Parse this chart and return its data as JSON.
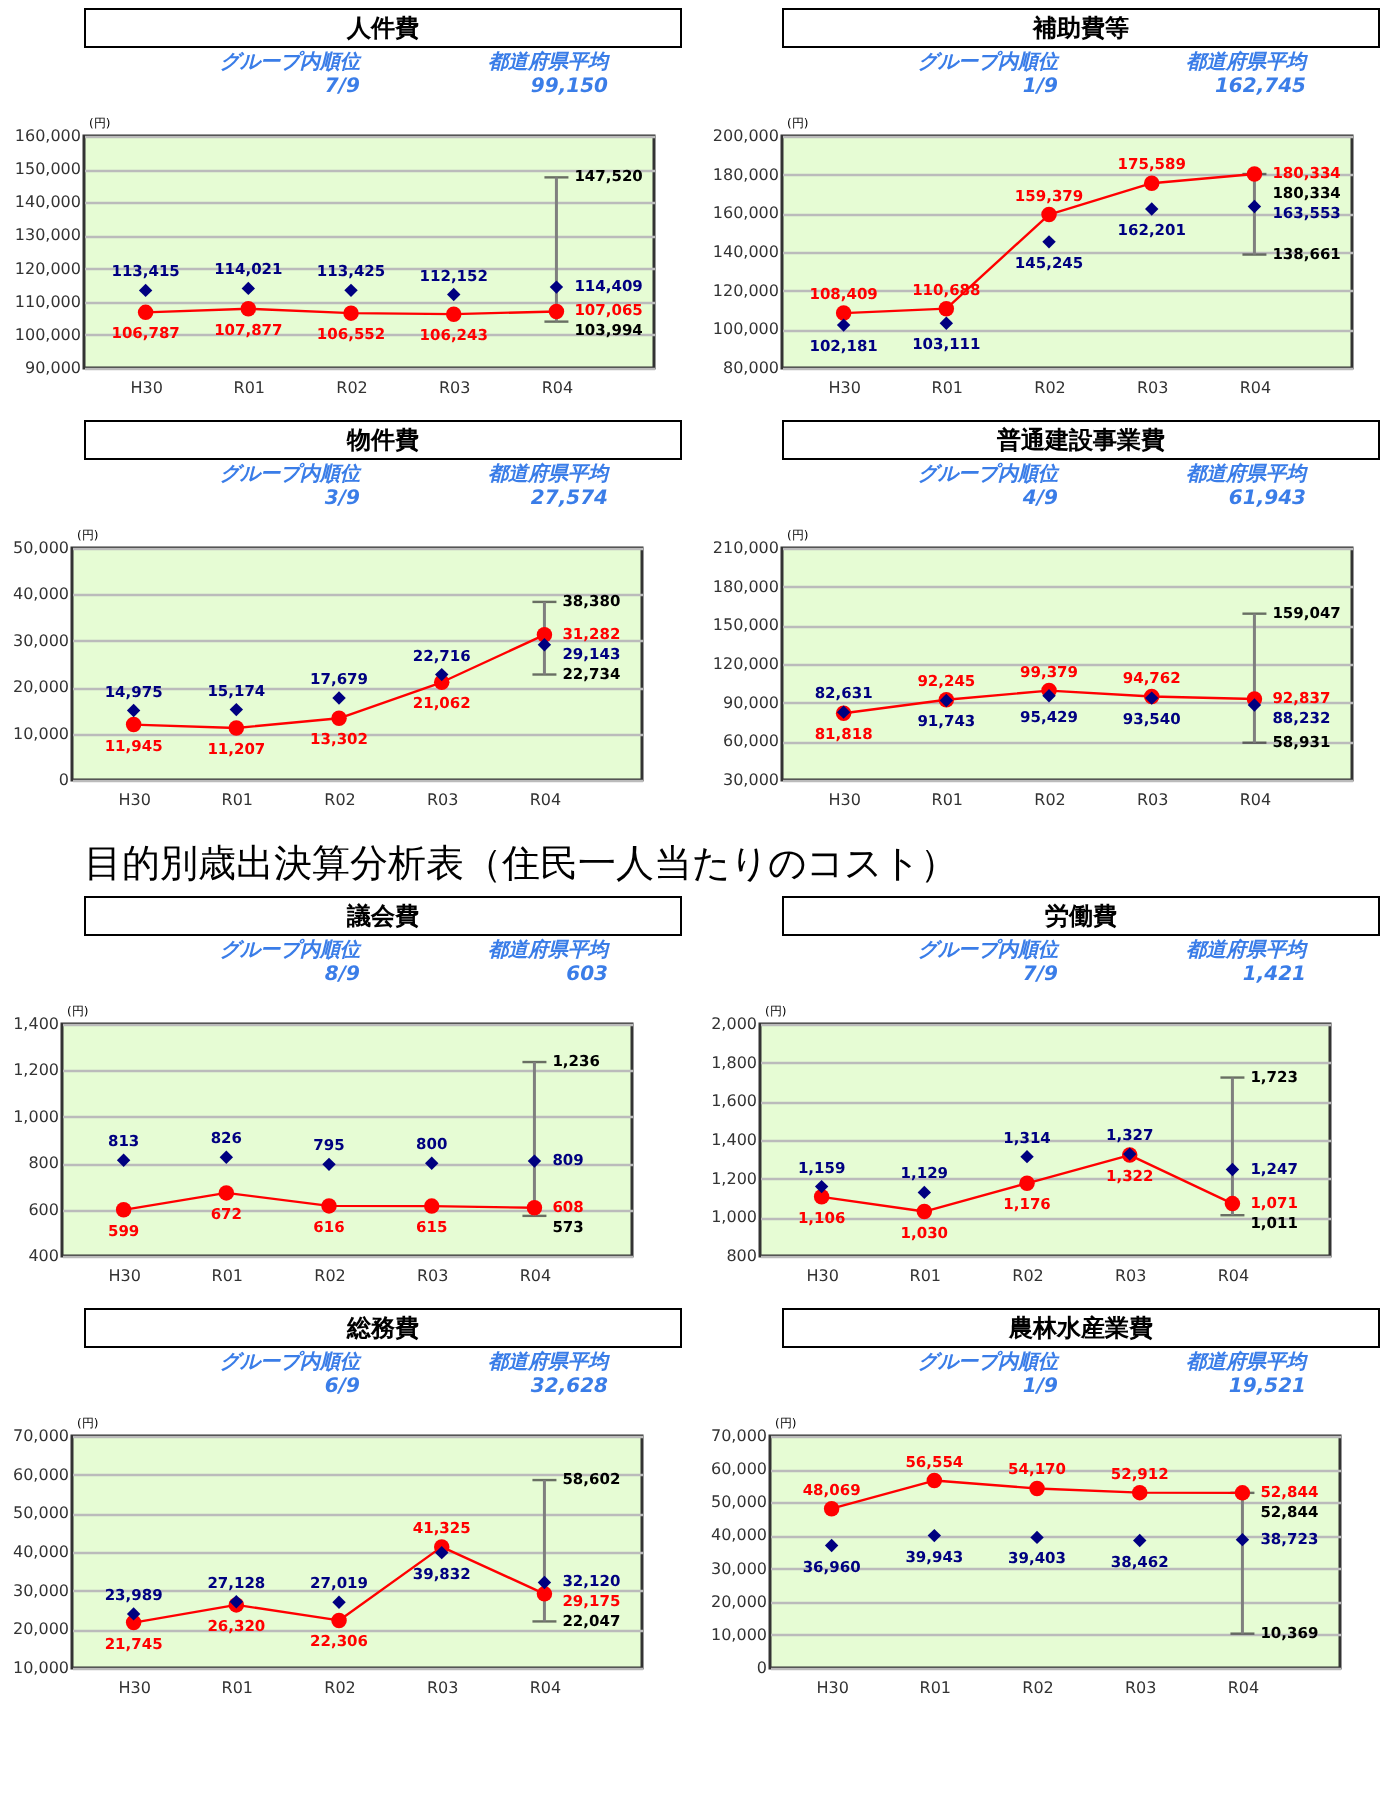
{
  "chart_data": [
    {
      "type": "line",
      "title": "人件費",
      "ylabel": "(円)",
      "categories": [
        "H30",
        "R01",
        "R02",
        "R03",
        "R04"
      ],
      "ylim": [
        90000,
        160000
      ],
      "yticks": [
        {
          "value": 90000,
          "label": "90,000"
        },
        {
          "value": 100000,
          "label": "100,000"
        },
        {
          "value": 110000,
          "label": "110,000"
        },
        {
          "value": 120000,
          "label": "120,000"
        },
        {
          "value": 130000,
          "label": "130,000"
        },
        {
          "value": 140000,
          "label": "140,000"
        },
        {
          "value": 150000,
          "label": "150,000"
        },
        {
          "value": 160000,
          "label": "160,000"
        }
      ],
      "grid": "y",
      "annotations": [
        "グループ内順位",
        "7/9",
        "都道府県平均",
        "99,150",
        {
          "text": "147,520",
          "x": "R04",
          "y": 147520
        },
        {
          "text": "103,994",
          "x": "R04",
          "y": 103994
        }
      ],
      "series": [
        {
          "type": "line",
          "color": "#ff0000",
          "marker": "circle",
          "values": [
            106787,
            107877,
            106552,
            106243,
            107065
          ],
          "value_labels": [
            "106,787",
            "107,877",
            "106,552",
            "106,243",
            "107,065"
          ],
          "errors": [
            null,
            null,
            null,
            null,
            [
              103994,
              147520
            ]
          ]
        },
        {
          "type": "scatter",
          "color": "#000080",
          "marker": "diamond",
          "values": [
            113415,
            114021,
            113425,
            112152,
            114409
          ],
          "value_labels": [
            "113,415",
            "114,021",
            "113,425",
            "112,152",
            "114,409"
          ]
        }
      ]
    },
    {
      "type": "line",
      "title": "補助費等",
      "ylabel": "(円)",
      "categories": [
        "H30",
        "R01",
        "R02",
        "R03",
        "R04"
      ],
      "ylim": [
        80000,
        200000
      ],
      "yticks": [
        {
          "value": 80000,
          "label": "80,000"
        },
        {
          "value": 100000,
          "label": "100,000"
        },
        {
          "value": 120000,
          "label": "120,000"
        },
        {
          "value": 140000,
          "label": "140,000"
        },
        {
          "value": 160000,
          "label": "160,000"
        },
        {
          "value": 180000,
          "label": "180,000"
        },
        {
          "value": 200000,
          "label": "200,000"
        }
      ],
      "grid": "y",
      "annotations": [
        "グループ内順位",
        "1/9",
        "都道府県平均",
        "162,745",
        {
          "text": "180,334",
          "x": "R04",
          "y": 180334
        },
        {
          "text": "138,661",
          "x": "R04",
          "y": 138661
        }
      ],
      "series": [
        {
          "type": "line",
          "color": "#ff0000",
          "marker": "circle",
          "values": [
            108409,
            110688,
            159379,
            175589,
            180334
          ],
          "value_labels": [
            "108,409",
            "110,688",
            "159,379",
            "175,589",
            "180,334"
          ],
          "errors": [
            null,
            null,
            null,
            null,
            [
              138661,
              180334
            ]
          ]
        },
        {
          "type": "scatter",
          "color": "#000080",
          "marker": "diamond",
          "values": [
            102181,
            103111,
            145245,
            162201,
            163553
          ],
          "value_labels": [
            "102,181",
            "103,111",
            "145,245",
            "162,201",
            "163,553"
          ]
        }
      ]
    },
    {
      "type": "line",
      "title": "物件費",
      "ylabel": "(円)",
      "categories": [
        "H30",
        "R01",
        "R02",
        "R03",
        "R04"
      ],
      "ylim": [
        0,
        50000
      ],
      "yticks": [
        0,
        {
          "value": 10000,
          "label": "10,000"
        },
        {
          "value": 20000,
          "label": "20,000"
        },
        {
          "value": 30000,
          "label": "30,000"
        },
        {
          "value": 40000,
          "label": "40,000"
        },
        {
          "value": 50000,
          "label": "50,000"
        }
      ],
      "grid": "y",
      "annotations": [
        "グループ内順位",
        "3/9",
        "都道府県平均",
        "27,574",
        {
          "text": "38,380",
          "x": "R04",
          "y": 38380
        },
        {
          "text": "22,734",
          "x": "R04",
          "y": 22734
        }
      ],
      "series": [
        {
          "type": "line",
          "color": "#ff0000",
          "marker": "circle",
          "values": [
            11945,
            11207,
            13302,
            21062,
            31282
          ],
          "value_labels": [
            "11,945",
            "11,207",
            "13,302",
            "21,062",
            "31,282"
          ],
          "errors": [
            null,
            null,
            null,
            null,
            [
              22734,
              38380
            ]
          ]
        },
        {
          "type": "scatter",
          "color": "#000080",
          "marker": "diamond",
          "values": [
            14975,
            15174,
            17679,
            22716,
            29143
          ],
          "value_labels": [
            "14,975",
            "15,174",
            "17,679",
            "22,716",
            "29,143"
          ]
        }
      ]
    },
    {
      "type": "line",
      "title": "普通建設事業費",
      "ylabel": "(円)",
      "categories": [
        "H30",
        "R01",
        "R02",
        "R03",
        "R04"
      ],
      "ylim": [
        30000,
        210000
      ],
      "yticks": [
        {
          "value": 30000,
          "label": "30,000"
        },
        {
          "value": 60000,
          "label": "60,000"
        },
        {
          "value": 90000,
          "label": "90,000"
        },
        {
          "value": 120000,
          "label": "120,000"
        },
        {
          "value": 150000,
          "label": "150,000"
        },
        {
          "value": 180000,
          "label": "180,000"
        },
        {
          "value": 210000,
          "label": "210,000"
        }
      ],
      "grid": "y",
      "annotations": [
        "グループ内順位",
        "4/9",
        "都道府県平均",
        "61,943",
        {
          "text": "159,047",
          "x": "R04",
          "y": 159047
        },
        {
          "text": "58,931",
          "x": "R04",
          "y": 58931
        }
      ],
      "series": [
        {
          "type": "line",
          "color": "#ff0000",
          "marker": "circle",
          "values": [
            81818,
            92245,
            99379,
            94762,
            92837
          ],
          "value_labels": [
            "81,818",
            "92,245",
            "99,379",
            "94,762",
            "92,837"
          ],
          "errors": [
            null,
            null,
            null,
            null,
            [
              58931,
              159047
            ]
          ]
        },
        {
          "type": "scatter",
          "color": "#000080",
          "marker": "diamond",
          "values": [
            82631,
            91743,
            95429,
            93540,
            88232
          ],
          "value_labels": [
            "82,631",
            "91,743",
            "95,429",
            "93,540",
            "88,232"
          ]
        }
      ]
    },
    {
      "type": "other",
      "title": "目的別歳出決算分析表（住民一人当たりのコスト）"
    },
    {
      "type": "line",
      "title": "議会費",
      "ylabel": "(円)",
      "categories": [
        "H30",
        "R01",
        "R02",
        "R03",
        "R04"
      ],
      "ylim": [
        400,
        1400
      ],
      "yticks": [
        400,
        600,
        800,
        {
          "value": 1000,
          "label": "1,000"
        },
        {
          "value": 1200,
          "label": "1,200"
        },
        {
          "value": 1400,
          "label": "1,400"
        }
      ],
      "grid": "y",
      "annotations": [
        "グループ内順位",
        "8/9",
        "都道府県平均",
        "603",
        {
          "text": "1,236",
          "x": "R04",
          "y": 1236
        },
        {
          "text": "573",
          "x": "R04",
          "y": 573
        }
      ],
      "series": [
        {
          "type": "line",
          "color": "#ff0000",
          "marker": "circle",
          "values": [
            599,
            672,
            616,
            615,
            608
          ],
          "value_labels": [
            "599",
            "672",
            "616",
            "615",
            "608"
          ],
          "errors": [
            null,
            null,
            null,
            null,
            [
              573,
              1236
            ]
          ]
        },
        {
          "type": "scatter",
          "color": "#000080",
          "marker": "diamond",
          "values": [
            813,
            826,
            795,
            800,
            809
          ],
          "value_labels": [
            "813",
            "826",
            "795",
            "800",
            "809"
          ]
        }
      ]
    },
    {
      "type": "line",
      "title": "労働費",
      "ylabel": "(円)",
      "categories": [
        "H30",
        "R01",
        "R02",
        "R03",
        "R04"
      ],
      "ylim": [
        800,
        2000
      ],
      "yticks": [
        800,
        {
          "value": 1000,
          "label": "1,000"
        },
        {
          "value": 1200,
          "label": "1,200"
        },
        {
          "value": 1400,
          "label": "1,400"
        },
        {
          "value": 1600,
          "label": "1,600"
        },
        {
          "value": 1800,
          "label": "1,800"
        },
        {
          "value": 2000,
          "label": "2,000"
        }
      ],
      "grid": "y",
      "annotations": [
        "グループ内順位",
        "7/9",
        "都道府県平均",
        "1,421",
        {
          "text": "1,723",
          "x": "R04",
          "y": 1723
        },
        {
          "text": "1,011",
          "x": "R04",
          "y": 1011
        }
      ],
      "series": [
        {
          "type": "line",
          "color": "#ff0000",
          "marker": "circle",
          "values": [
            1106,
            1030,
            1176,
            1322,
            1071
          ],
          "value_labels": [
            "1,106",
            "1,030",
            "1,176",
            "1,322",
            "1,071"
          ],
          "errors": [
            null,
            null,
            null,
            null,
            [
              1011,
              1723
            ]
          ]
        },
        {
          "type": "scatter",
          "color": "#000080",
          "marker": "diamond",
          "values": [
            1159,
            1129,
            1314,
            1327,
            1247
          ],
          "value_labels": [
            "1,159",
            "1,129",
            "1,314",
            "1,327",
            "1,247"
          ]
        }
      ]
    },
    {
      "type": "line",
      "title": "総務費",
      "ylabel": "(円)",
      "categories": [
        "H30",
        "R01",
        "R02",
        "R03",
        "R04"
      ],
      "ylim": [
        10000,
        70000
      ],
      "yticks": [
        {
          "value": 10000,
          "label": "10,000"
        },
        {
          "value": 20000,
          "label": "20,000"
        },
        {
          "value": 30000,
          "label": "30,000"
        },
        {
          "value": 40000,
          "label": "40,000"
        },
        {
          "value": 50000,
          "label": "50,000"
        },
        {
          "value": 60000,
          "label": "60,000"
        },
        {
          "value": 70000,
          "label": "70,000"
        }
      ],
      "grid": "y",
      "annotations": [
        "グループ内順位",
        "6/9",
        "都道府県平均",
        "32,628",
        {
          "text": "58,602",
          "x": "R04",
          "y": 58602
        },
        {
          "text": "22,047",
          "x": "R04",
          "y": 22047
        }
      ],
      "series": [
        {
          "type": "line",
          "color": "#ff0000",
          "marker": "circle",
          "values": [
            21745,
            26320,
            22306,
            41325,
            29175
          ],
          "value_labels": [
            "21,745",
            "26,320",
            "22,306",
            "41,325",
            "29,175"
          ],
          "errors": [
            null,
            null,
            null,
            null,
            [
              22047,
              58602
            ]
          ]
        },
        {
          "type": "scatter",
          "color": "#000080",
          "marker": "diamond",
          "values": [
            23989,
            27128,
            27019,
            39832,
            32120
          ],
          "value_labels": [
            "23,989",
            "27,128",
            "27,019",
            "39,832",
            "32,120"
          ]
        }
      ]
    },
    {
      "type": "line",
      "title": "農林水産業費",
      "ylabel": "(円)",
      "categories": [
        "H30",
        "R01",
        "R02",
        "R03",
        "R04"
      ],
      "ylim": [
        0,
        70000
      ],
      "yticks": [
        0,
        {
          "value": 10000,
          "label": "10,000"
        },
        {
          "value": 20000,
          "label": "20,000"
        },
        {
          "value": 30000,
          "label": "30,000"
        },
        {
          "value": 40000,
          "label": "40,000"
        },
        {
          "value": 50000,
          "label": "50,000"
        },
        {
          "value": 60000,
          "label": "60,000"
        },
        {
          "value": 70000,
          "label": "70,000"
        }
      ],
      "grid": "y",
      "annotations": [
        "グループ内順位",
        "1/9",
        "都道府県平均",
        "19,521",
        {
          "text": "52,844",
          "x": "R04",
          "y": 52844
        },
        {
          "text": "10,369",
          "x": "R04",
          "y": 10369
        }
      ],
      "series": [
        {
          "type": "line",
          "color": "#ff0000",
          "marker": "circle",
          "values": [
            48069,
            56554,
            54170,
            52912,
            52844
          ],
          "value_labels": [
            "48,069",
            "56,554",
            "54,170",
            "52,912",
            "52,844"
          ],
          "errors": [
            null,
            null,
            null,
            null,
            [
              10369,
              52844
            ]
          ]
        },
        {
          "type": "scatter",
          "color": "#000080",
          "marker": "diamond",
          "values": [
            36960,
            39943,
            39403,
            38462,
            38723
          ],
          "value_labels": [
            "36,960",
            "39,943",
            "39,403",
            "38,462",
            "38,723"
          ]
        }
      ]
    }
  ]
}
